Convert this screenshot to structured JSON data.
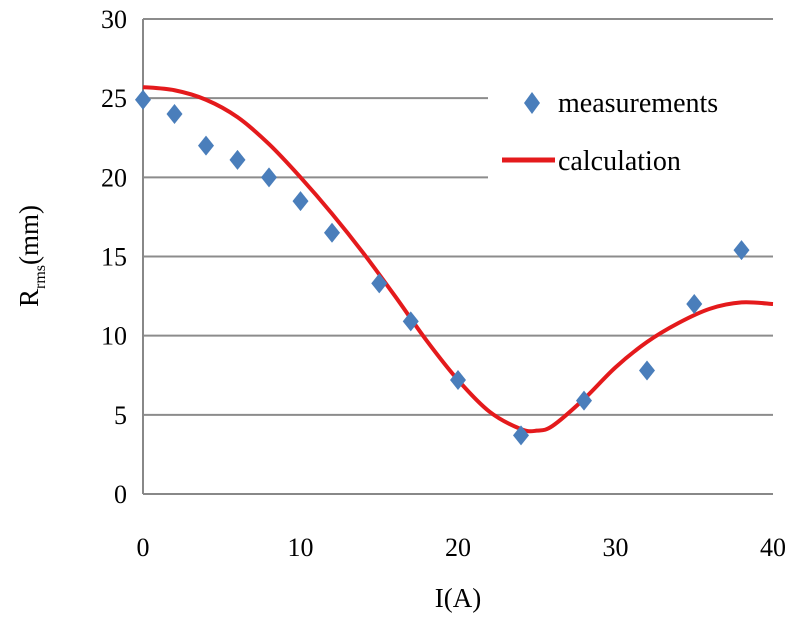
{
  "chart_data": {
    "type": "scatter",
    "title": "",
    "xlabel": "I(A)",
    "ylabel_main": "R",
    "ylabel_sub": "rms",
    "ylabel_unit": "(mm)",
    "xlim": [
      0,
      40
    ],
    "ylim": [
      0,
      30
    ],
    "xticks": [
      0,
      10,
      20,
      30,
      40
    ],
    "yticks": [
      0,
      5,
      10,
      15,
      20,
      25,
      30
    ],
    "grid": "horizontal",
    "legend_position": "top-right",
    "series": [
      {
        "name": "measurements",
        "kind": "scatter",
        "marker": "diamond",
        "color": "#4a7ebb",
        "x": [
          0,
          2,
          4,
          6,
          8,
          10,
          12,
          15,
          17,
          20,
          24,
          28,
          32,
          35,
          38
        ],
        "y": [
          24.9,
          24.0,
          22.0,
          21.1,
          20.0,
          18.5,
          16.5,
          13.3,
          10.9,
          7.2,
          3.7,
          5.9,
          7.8,
          12.0,
          15.4
        ]
      },
      {
        "name": "calculation",
        "kind": "line",
        "color": "#e41a1c",
        "x": [
          0,
          2,
          4,
          6,
          8,
          10,
          12,
          14,
          16,
          18,
          20,
          22,
          24,
          25,
          26,
          28,
          30,
          32,
          34,
          36,
          38,
          40
        ],
        "y": [
          25.7,
          25.5,
          24.9,
          23.8,
          22.1,
          20.0,
          17.7,
          15.2,
          12.5,
          9.7,
          7.2,
          5.2,
          4.1,
          4.0,
          4.3,
          6.0,
          8.0,
          9.6,
          10.8,
          11.7,
          12.1,
          12.0
        ]
      }
    ]
  }
}
